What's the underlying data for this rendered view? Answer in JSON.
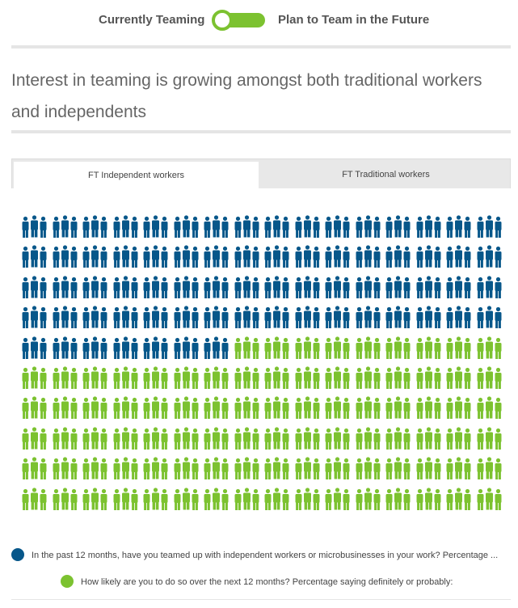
{
  "toggle": {
    "left_label": "Currently Teaming",
    "right_label": "Plan to Team in the Future",
    "accent": "#7cc230"
  },
  "headline": "Interest in teaming is growing amongst both traditional workers and independents",
  "tabs": [
    {
      "label": "FT Independent workers",
      "active": true
    },
    {
      "label": "FT Traditional workers",
      "active": false
    }
  ],
  "chart_data": {
    "type": "pictogram",
    "icon": "people-icon",
    "rows": 10,
    "columns": 16,
    "total_icons": 160,
    "series": [
      {
        "name": "In the past 12 months, have you teamed up with independent workers or microbusinesses in your work? Percentage ...",
        "color": "#07578a",
        "icons": 71
      },
      {
        "name": "How likely are you to do so over the next 12 months? Percentage saying definitely or probably:",
        "color": "#7cc230",
        "icons": 89
      }
    ]
  },
  "legend": [
    {
      "text": "In the past 12 months, have you teamed up with independent workers or microbusinesses in your work? Percentage ...",
      "color": "#07578a"
    },
    {
      "text": "How likely are you to do so over the next 12 months? Percentage saying definitely or probably:",
      "color": "#7cc230"
    }
  ]
}
